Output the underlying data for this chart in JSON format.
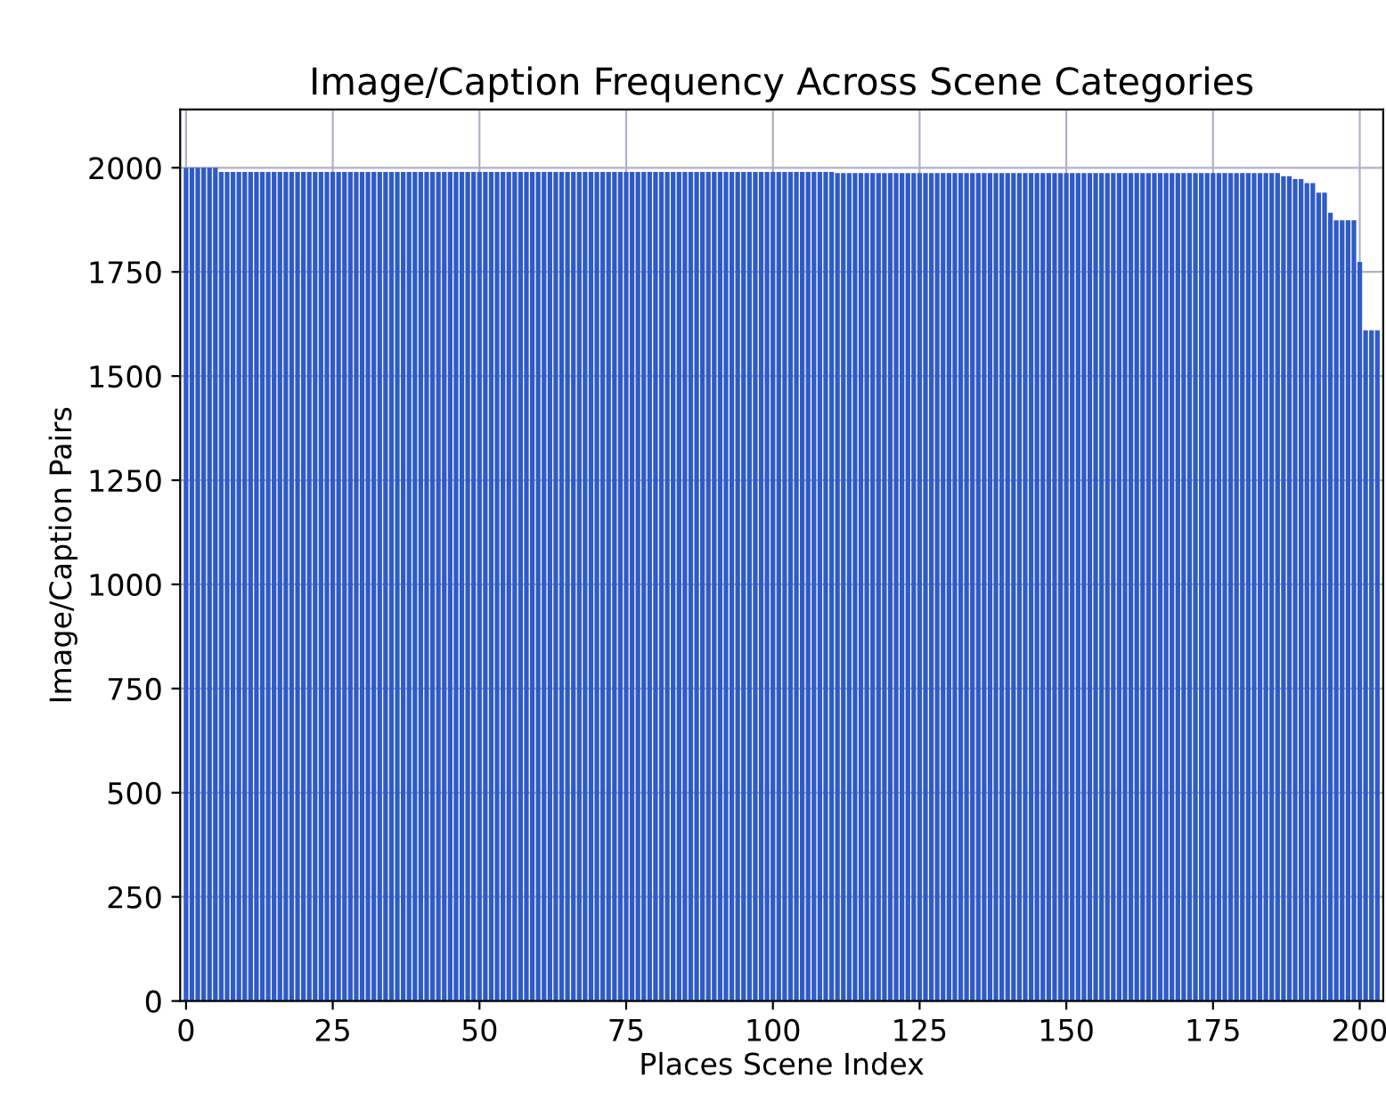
{
  "chart_data": {
    "type": "bar",
    "title": "Image/Caption Frequency Across Scene Categories",
    "xlabel": "Places Scene Index",
    "ylabel": "Image/Caption Pairs",
    "x": [
      0,
      1,
      2,
      3,
      4,
      5,
      6,
      7,
      8,
      9,
      10,
      11,
      12,
      13,
      14,
      15,
      16,
      17,
      18,
      19,
      20,
      21,
      22,
      23,
      24,
      25,
      26,
      27,
      28,
      29,
      30,
      31,
      32,
      33,
      34,
      35,
      36,
      37,
      38,
      39,
      40,
      41,
      42,
      43,
      44,
      45,
      46,
      47,
      48,
      49,
      50,
      51,
      52,
      53,
      54,
      55,
      56,
      57,
      58,
      59,
      60,
      61,
      62,
      63,
      64,
      65,
      66,
      67,
      68,
      69,
      70,
      71,
      72,
      73,
      74,
      75,
      76,
      77,
      78,
      79,
      80,
      81,
      82,
      83,
      84,
      85,
      86,
      87,
      88,
      89,
      90,
      91,
      92,
      93,
      94,
      95,
      96,
      97,
      98,
      99,
      100,
      101,
      102,
      103,
      104,
      105,
      106,
      107,
      108,
      109,
      110,
      111,
      112,
      113,
      114,
      115,
      116,
      117,
      118,
      119,
      120,
      121,
      122,
      123,
      124,
      125,
      126,
      127,
      128,
      129,
      130,
      131,
      132,
      133,
      134,
      135,
      136,
      137,
      138,
      139,
      140,
      141,
      142,
      143,
      144,
      145,
      146,
      147,
      148,
      149,
      150,
      151,
      152,
      153,
      154,
      155,
      156,
      157,
      158,
      159,
      160,
      161,
      162,
      163,
      164,
      165,
      166,
      167,
      168,
      169,
      170,
      171,
      172,
      173,
      174,
      175,
      176,
      177,
      178,
      179,
      180,
      181,
      182,
      183,
      184,
      185,
      186,
      187,
      188,
      189,
      190,
      191,
      192,
      193,
      194,
      195,
      196,
      197,
      198,
      199,
      200,
      201,
      202,
      203
    ],
    "values": [
      2000,
      2000,
      2000,
      2000,
      2000,
      2000,
      1990,
      1990,
      1990,
      1990,
      1990,
      1990,
      1990,
      1990,
      1990,
      1990,
      1990,
      1990,
      1990,
      1990,
      1990,
      1990,
      1990,
      1990,
      1990,
      1990,
      1990,
      1990,
      1990,
      1990,
      1990,
      1990,
      1990,
      1990,
      1990,
      1990,
      1990,
      1990,
      1990,
      1990,
      1990,
      1990,
      1990,
      1990,
      1990,
      1990,
      1990,
      1990,
      1990,
      1990,
      1990,
      1990,
      1990,
      1990,
      1990,
      1990,
      1990,
      1990,
      1990,
      1990,
      1990,
      1990,
      1990,
      1990,
      1990,
      1990,
      1990,
      1990,
      1990,
      1990,
      1990,
      1990,
      1990,
      1990,
      1990,
      1990,
      1990,
      1990,
      1990,
      1990,
      1990,
      1990,
      1990,
      1990,
      1990,
      1990,
      1990,
      1990,
      1990,
      1990,
      1990,
      1990,
      1990,
      1990,
      1990,
      1990,
      1990,
      1990,
      1990,
      1990,
      1990,
      1990,
      1990,
      1990,
      1990,
      1990,
      1990,
      1990,
      1990,
      1990,
      1990,
      1987,
      1987,
      1987,
      1987,
      1987,
      1987,
      1987,
      1987,
      1987,
      1987,
      1987,
      1987,
      1987,
      1987,
      1987,
      1987,
      1987,
      1987,
      1987,
      1987,
      1987,
      1987,
      1987,
      1987,
      1987,
      1987,
      1987,
      1987,
      1987,
      1987,
      1987,
      1987,
      1987,
      1987,
      1987,
      1987,
      1987,
      1987,
      1987,
      1987,
      1987,
      1987,
      1987,
      1987,
      1987,
      1987,
      1987,
      1987,
      1987,
      1987,
      1987,
      1987,
      1987,
      1987,
      1987,
      1987,
      1987,
      1987,
      1987,
      1987,
      1987,
      1987,
      1987,
      1987,
      1987,
      1987,
      1987,
      1987,
      1987,
      1987,
      1987,
      1987,
      1987,
      1987,
      1987,
      1987,
      1980,
      1980,
      1973,
      1973,
      1963,
      1963,
      1940,
      1940,
      1892,
      1874,
      1874,
      1874,
      1874,
      1774,
      1610,
      1610,
      1610
    ],
    "color": "#2f5bc8",
    "xlim": [
      -1,
      204
    ],
    "xticks": [
      0,
      25,
      50,
      75,
      100,
      125,
      150,
      175,
      200
    ],
    "ylim": [
      0,
      2140
    ],
    "yticks": [
      0,
      250,
      500,
      750,
      1000,
      1250,
      1500,
      1750,
      2000
    ],
    "grid": true
  }
}
